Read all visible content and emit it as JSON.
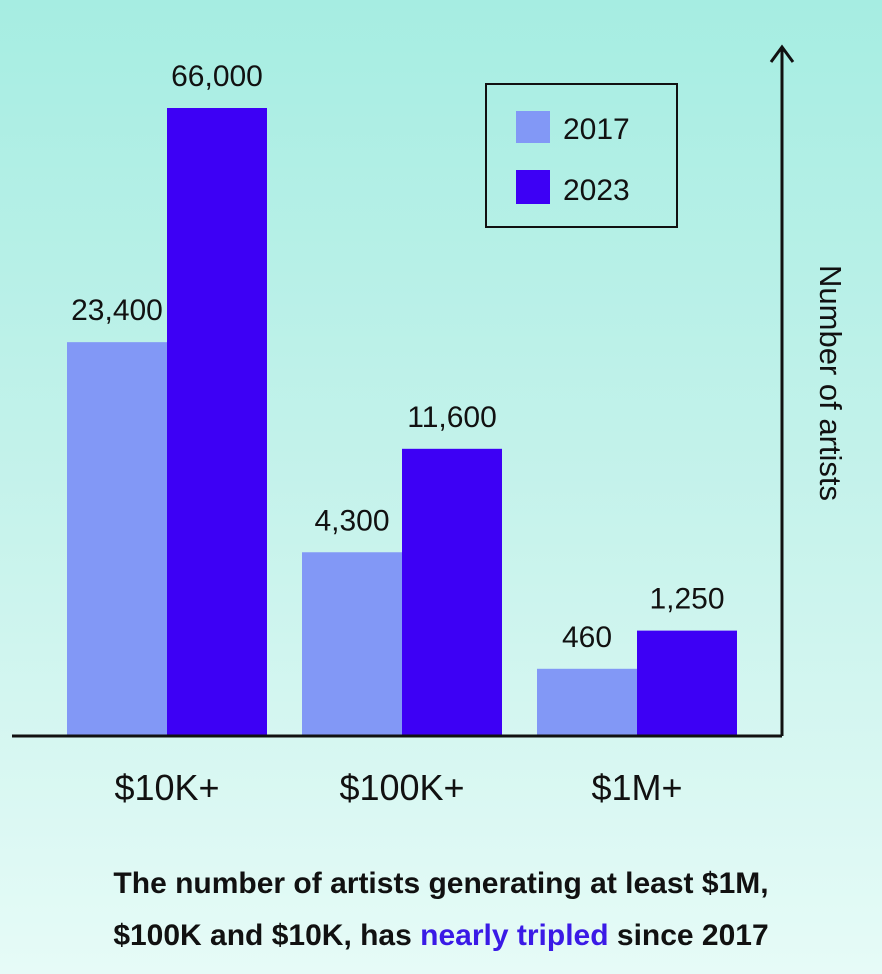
{
  "chart_data": {
    "type": "bar",
    "categories": [
      "$10K+",
      "$100K+",
      "$1M+"
    ],
    "series": [
      {
        "name": "2017",
        "values": [
          23400,
          4300,
          460
        ],
        "labels": [
          "23,400",
          "4,300",
          "460"
        ],
        "color": "#8298f6"
      },
      {
        "name": "2023",
        "values": [
          66000,
          11600,
          1250
        ],
        "labels": [
          "66,000",
          "11,600",
          "1,250"
        ],
        "color": "#3d00f5"
      }
    ],
    "ylabel": "Number of artists",
    "scale": "non-linear (not drawn to scale)",
    "legend_position": "top-right"
  },
  "caption": {
    "line1": "The number of artists generating at least $1M,",
    "line2_prefix": "$100K and $10K, has ",
    "line2_highlight": "nearly tripled",
    "line2_suffix": " since 2017"
  },
  "colors": {
    "highlight": "#3a1ae6",
    "axis": "#111111"
  }
}
